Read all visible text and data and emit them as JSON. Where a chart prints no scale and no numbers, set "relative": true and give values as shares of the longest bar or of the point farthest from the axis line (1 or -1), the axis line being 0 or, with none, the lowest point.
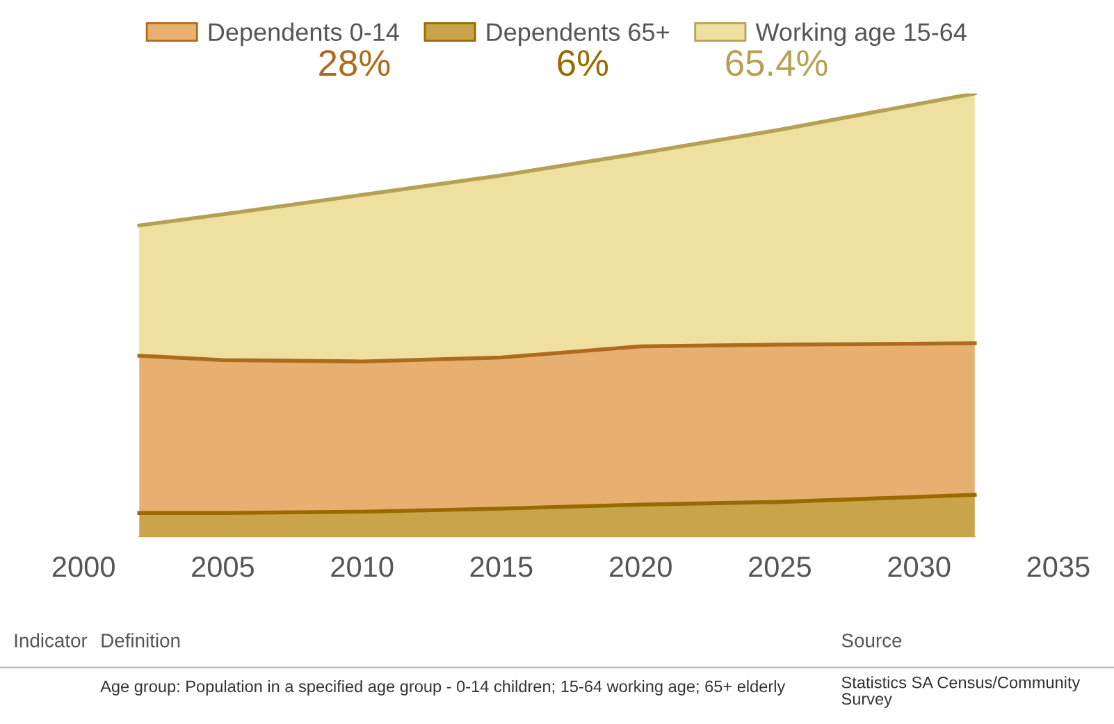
{
  "chart_data": {
    "type": "area",
    "stacked": true,
    "relative": true,
    "legend": "top",
    "grid": false,
    "xlim": [
      2000,
      2035
    ],
    "xticks": [
      2000,
      2005,
      2010,
      2015,
      2020,
      2025,
      2030,
      2035
    ],
    "x": [
      2002,
      2005,
      2010,
      2015,
      2020,
      2025,
      2032
    ],
    "series": [
      {
        "name": "Dependents 65+",
        "color": "#c9a44a",
        "values": [
          0.053,
          0.053,
          0.056,
          0.063,
          0.072,
          0.078,
          0.094
        ]
      },
      {
        "name": "Dependents 0-14",
        "color": "#e8b070",
        "values": [
          0.355,
          0.345,
          0.339,
          0.341,
          0.357,
          0.355,
          0.342
        ]
      },
      {
        "name": "Working age 15-64",
        "color": "#f0e0a0",
        "values": [
          0.294,
          0.329,
          0.376,
          0.411,
          0.436,
          0.485,
          0.564
        ]
      }
    ],
    "annotations": [
      "28%",
      "6%",
      "65.4%",
      "Indicator",
      "Definition",
      "Source",
      "Age group: Population in a specified age group - 0-14 children; 15-64 working age; 65+ elderly",
      "Statistics SA Census/Community Survey"
    ]
  }
}
